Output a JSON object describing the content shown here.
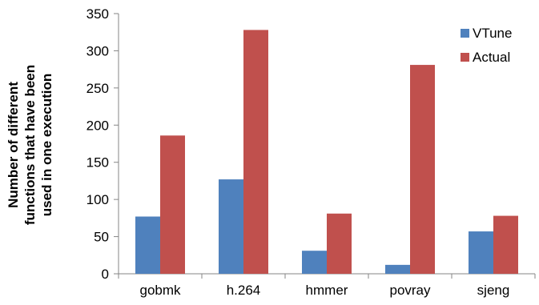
{
  "chart_data": {
    "type": "bar",
    "categories": [
      "gobmk",
      "h.264",
      "hmmer",
      "povray",
      "sjeng"
    ],
    "series": [
      {
        "name": "VTune",
        "color": "#4f81bd",
        "values": [
          77,
          127,
          31,
          12,
          57
        ]
      },
      {
        "name": "Actual",
        "color": "#c0504d",
        "values": [
          186,
          328,
          81,
          281,
          78
        ]
      }
    ],
    "ylabel_lines": [
      "Number of different",
      "functions that have been",
      "used in one execution"
    ],
    "ylim": [
      0,
      350
    ],
    "yticks": [
      0,
      50,
      100,
      150,
      200,
      250,
      300,
      350
    ],
    "grid": false,
    "legend_position": "top-right"
  }
}
